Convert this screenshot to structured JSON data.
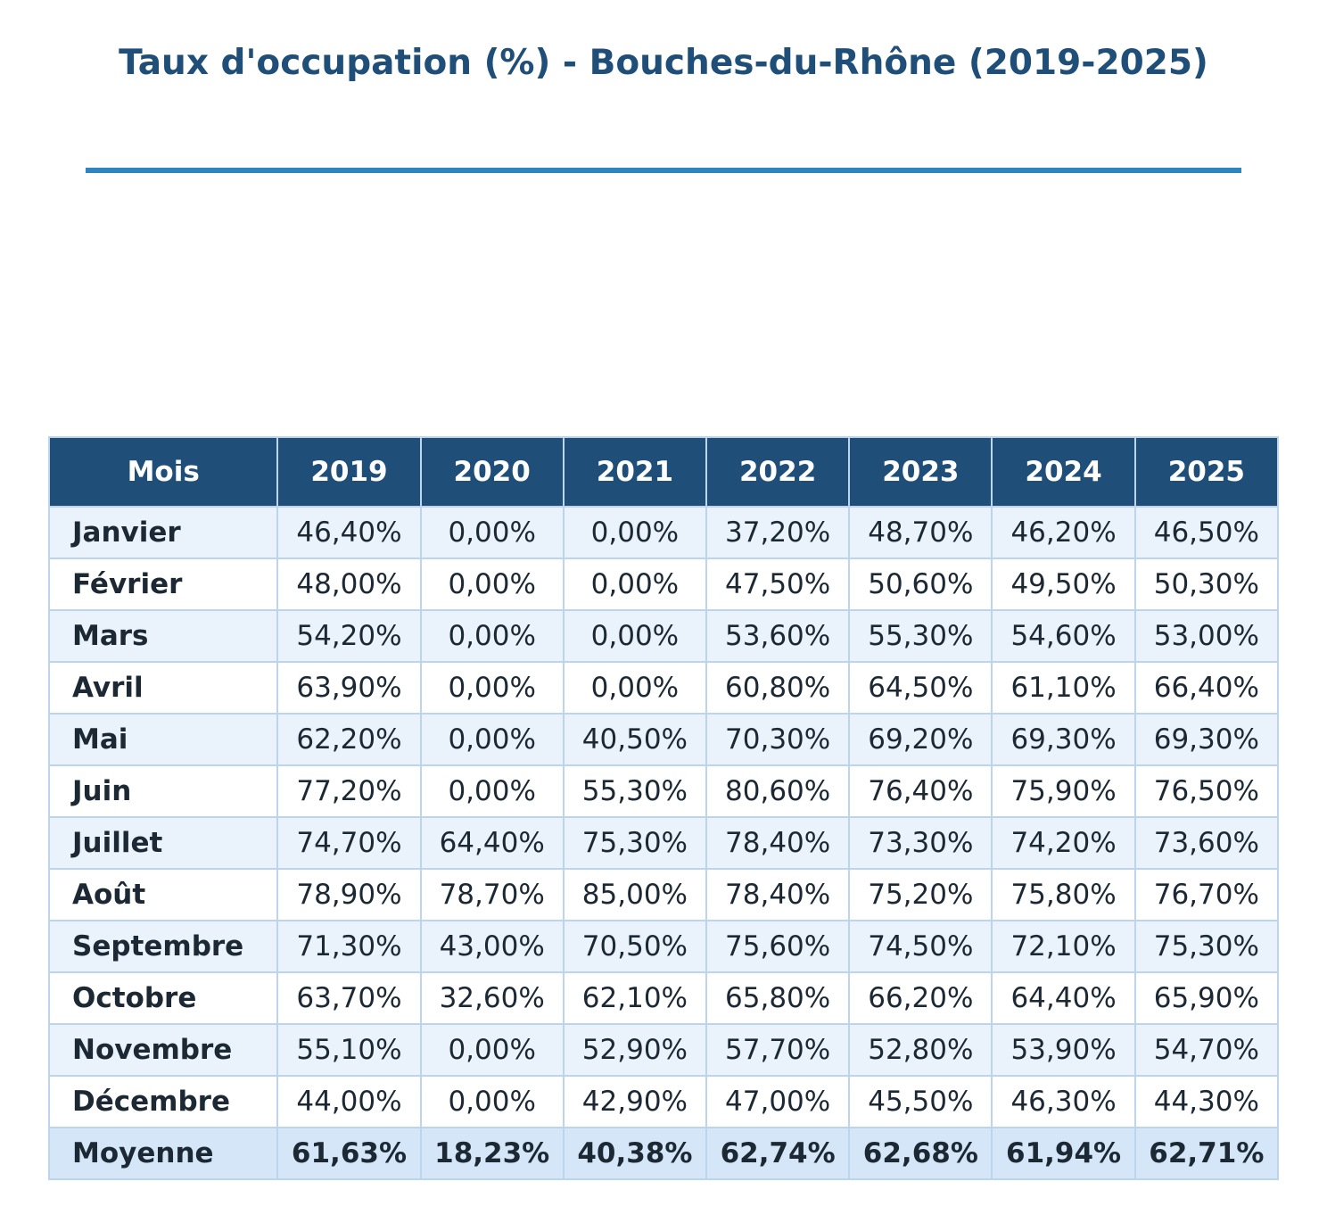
{
  "chart_data": {
    "type": "table",
    "title": "Taux d'occupation (%) - Bouches-du-Rhône (2019-2025)",
    "columns": [
      "Mois",
      "2019",
      "2020",
      "2021",
      "2022",
      "2023",
      "2024",
      "2025"
    ],
    "rows": [
      {
        "label": "Janvier",
        "values": [
          "46,40%",
          "0,00%",
          "0,00%",
          "37,20%",
          "48,70%",
          "46,20%",
          "46,50%"
        ]
      },
      {
        "label": "Février",
        "values": [
          "48,00%",
          "0,00%",
          "0,00%",
          "47,50%",
          "50,60%",
          "49,50%",
          "50,30%"
        ]
      },
      {
        "label": "Mars",
        "values": [
          "54,20%",
          "0,00%",
          "0,00%",
          "53,60%",
          "55,30%",
          "54,60%",
          "53,00%"
        ]
      },
      {
        "label": "Avril",
        "values": [
          "63,90%",
          "0,00%",
          "0,00%",
          "60,80%",
          "64,50%",
          "61,10%",
          "66,40%"
        ]
      },
      {
        "label": "Mai",
        "values": [
          "62,20%",
          "0,00%",
          "40,50%",
          "70,30%",
          "69,20%",
          "69,30%",
          "69,30%"
        ]
      },
      {
        "label": "Juin",
        "values": [
          "77,20%",
          "0,00%",
          "55,30%",
          "80,60%",
          "76,40%",
          "75,90%",
          "76,50%"
        ]
      },
      {
        "label": "Juillet",
        "values": [
          "74,70%",
          "64,40%",
          "75,30%",
          "78,40%",
          "73,30%",
          "74,20%",
          "73,60%"
        ]
      },
      {
        "label": "Août",
        "values": [
          "78,90%",
          "78,70%",
          "85,00%",
          "78,40%",
          "75,20%",
          "75,80%",
          "76,70%"
        ]
      },
      {
        "label": "Septembre",
        "values": [
          "71,30%",
          "43,00%",
          "70,50%",
          "75,60%",
          "74,50%",
          "72,10%",
          "75,30%"
        ]
      },
      {
        "label": "Octobre",
        "values": [
          "63,70%",
          "32,60%",
          "62,10%",
          "65,80%",
          "66,20%",
          "64,40%",
          "65,90%"
        ]
      },
      {
        "label": "Novembre",
        "values": [
          "55,10%",
          "0,00%",
          "52,90%",
          "57,70%",
          "52,80%",
          "53,90%",
          "54,70%"
        ]
      },
      {
        "label": "Décembre",
        "values": [
          "44,00%",
          "0,00%",
          "42,90%",
          "47,00%",
          "45,50%",
          "46,30%",
          "44,30%"
        ]
      }
    ],
    "average": {
      "label": "Moyenne",
      "values": [
        "61,63%",
        "18,23%",
        "40,38%",
        "62,74%",
        "62,68%",
        "61,94%",
        "62,71%"
      ]
    }
  },
  "colors": {
    "title": "#1f4e79",
    "rule": "#2e86c1",
    "header_bg": "#1f4e79",
    "header_text": "#ffffff",
    "row_odd": "#eaf2fb",
    "row_even": "#ffffff",
    "average_row": "#d4e6f7",
    "border": "#bcd4ec"
  }
}
